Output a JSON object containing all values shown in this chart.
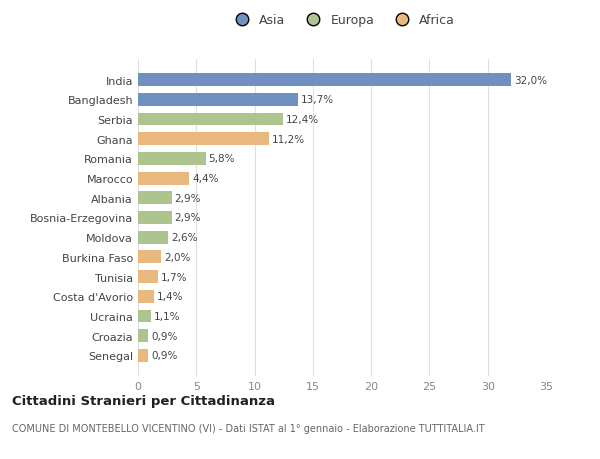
{
  "countries": [
    "India",
    "Bangladesh",
    "Serbia",
    "Ghana",
    "Romania",
    "Marocco",
    "Albania",
    "Bosnia-Erzegovina",
    "Moldova",
    "Burkina Faso",
    "Tunisia",
    "Costa d'Avorio",
    "Ucraina",
    "Croazia",
    "Senegal"
  ],
  "values": [
    32.0,
    13.7,
    12.4,
    11.2,
    5.8,
    4.4,
    2.9,
    2.9,
    2.6,
    2.0,
    1.7,
    1.4,
    1.1,
    0.9,
    0.9
  ],
  "labels": [
    "32,0%",
    "13,7%",
    "12,4%",
    "11,2%",
    "5,8%",
    "4,4%",
    "2,9%",
    "2,9%",
    "2,6%",
    "2,0%",
    "1,7%",
    "1,4%",
    "1,1%",
    "0,9%",
    "0,9%"
  ],
  "continents": [
    "Asia",
    "Asia",
    "Europa",
    "Africa",
    "Europa",
    "Africa",
    "Europa",
    "Europa",
    "Europa",
    "Africa",
    "Africa",
    "Africa",
    "Europa",
    "Europa",
    "Africa"
  ],
  "colors": {
    "Asia": "#7090bf",
    "Europa": "#adc48e",
    "Africa": "#e8b87e"
  },
  "legend_labels": [
    "Asia",
    "Europa",
    "Africa"
  ],
  "legend_colors": [
    "#7090bf",
    "#adc48e",
    "#e8b87e"
  ],
  "xlim": [
    0,
    35
  ],
  "xticks": [
    0,
    5,
    10,
    15,
    20,
    25,
    30,
    35
  ],
  "title": "Cittadini Stranieri per Cittadinanza",
  "subtitle": "COMUNE DI MONTEBELLO VICENTINO (VI) - Dati ISTAT al 1° gennaio - Elaborazione TUTTITALIA.IT",
  "fig_background": "#ffffff",
  "plot_background": "#ffffff",
  "bar_height": 0.65
}
